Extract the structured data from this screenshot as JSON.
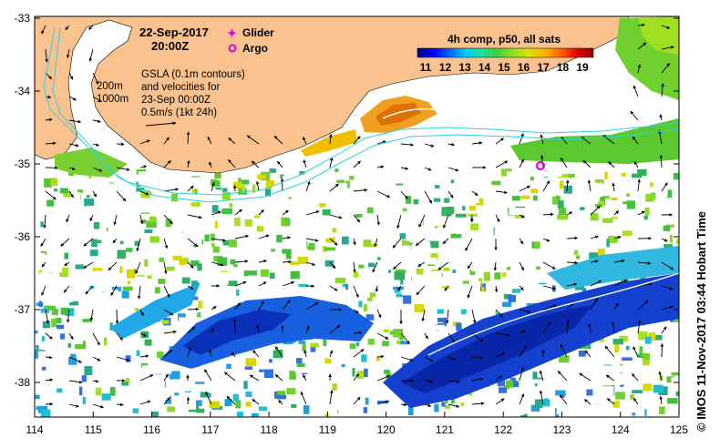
{
  "map": {
    "date_label": "22-Sep-2017",
    "time_label": "20:00Z",
    "legend": {
      "glider_label": "Glider",
      "argo_label": "Argo",
      "glider_color": "#e000e0",
      "argo_color": "#e000e0"
    },
    "gsla_lines": [
      "GSLA (0.1m contours)",
      "and velocities for",
      "23-Sep 00:00Z",
      "0.5m/s (1kt 24h)"
    ],
    "depth_labels": [
      "200m",
      "1000m"
    ],
    "colorbar": {
      "title": "4h comp, p50, all sats",
      "ticks": [
        "11",
        "12",
        "13",
        "14",
        "15",
        "16",
        "17",
        "18",
        "19"
      ],
      "colors": [
        "#00007f",
        "#0000ff",
        "#0064ff",
        "#00c8ff",
        "#20e0a0",
        "#40d040",
        "#90e020",
        "#e0e000",
        "#ffb000",
        "#ff6000",
        "#e00000",
        "#8f0000"
      ]
    },
    "x_ticks": [
      "114",
      "115",
      "116",
      "117",
      "118",
      "119",
      "120",
      "121",
      "122",
      "123",
      "124",
      "125"
    ],
    "y_ticks": [
      "-33",
      "-34",
      "-35",
      "-36",
      "-37",
      "-38"
    ],
    "land_color": "#f9c28f",
    "credit": "© IMOS 11-Nov-2017 03:44 Hobart Time"
  }
}
